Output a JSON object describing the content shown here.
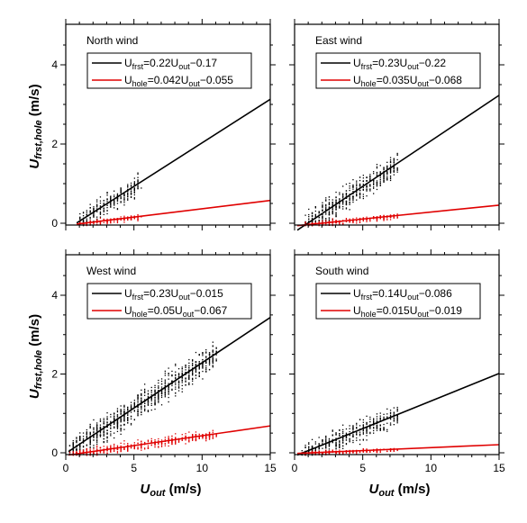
{
  "chart_data": [
    {
      "type": "scatter",
      "title": "North wind",
      "xlim": [
        0,
        15
      ],
      "ylim": [
        0,
        5.0
      ],
      "xticks": [
        0,
        5,
        10,
        15
      ],
      "yticks": [
        0,
        2,
        4
      ],
      "series": [
        {
          "name": "U_frst",
          "color": "#000000",
          "fit": {
            "slope": 0.22,
            "intercept": -0.17
          },
          "legend": {
            "var": "U",
            "sub": "frst",
            "mid": "=0.22U",
            "sub2": "out",
            "tail": "−0.17"
          },
          "scatter": {
            "x_range": [
              1.0,
              5.4
            ],
            "spread": 0.45,
            "count": 260,
            "x_max_outlier": 5.4,
            "y_max": 1.4
          }
        },
        {
          "name": "U_hole",
          "color": "#e00000",
          "fit": {
            "slope": 0.042,
            "intercept": -0.055
          },
          "legend": {
            "var": "U",
            "sub": "hole",
            "mid": "=0.042U",
            "sub2": "out",
            "tail": "−0.055"
          },
          "scatter": {
            "x_range": [
              1.0,
              5.4
            ],
            "spread": 0.12,
            "count": 160,
            "y_max": 0.4
          }
        }
      ]
    },
    {
      "type": "scatter",
      "title": "East wind",
      "xlim": [
        0,
        15
      ],
      "ylim": [
        0,
        5.0
      ],
      "xticks": [
        0,
        5,
        10,
        15
      ],
      "yticks": [
        0,
        2,
        4
      ],
      "series": [
        {
          "name": "U_frst",
          "color": "#000000",
          "fit": {
            "slope": 0.23,
            "intercept": -0.22
          },
          "legend": {
            "var": "U",
            "sub": "frst",
            "mid": "=0.23U",
            "sub2": "out",
            "tail": "−0.22"
          },
          "scatter": {
            "x_range": [
              0.8,
              7.5
            ],
            "spread": 0.5,
            "count": 520,
            "y_max": 2.4
          }
        },
        {
          "name": "U_hole",
          "color": "#e00000",
          "fit": {
            "slope": 0.035,
            "intercept": -0.068
          },
          "legend": {
            "var": "U",
            "sub": "hole",
            "mid": "=0.035U",
            "sub2": "out",
            "tail": "−0.068"
          },
          "scatter": {
            "x_range": [
              0.8,
              7.5
            ],
            "spread": 0.12,
            "count": 260,
            "y_max": 0.5
          }
        }
      ]
    },
    {
      "type": "scatter",
      "title": "West wind",
      "xlim": [
        0,
        15
      ],
      "ylim": [
        0,
        5.0
      ],
      "xticks": [
        0,
        5,
        10,
        15
      ],
      "yticks": [
        0,
        2,
        4
      ],
      "xlabel_var": "U",
      "xlabel_sub": "out",
      "xlabel_unit": "(m/s)",
      "series": [
        {
          "name": "U_frst",
          "color": "#000000",
          "fit": {
            "slope": 0.23,
            "intercept": -0.015
          },
          "legend": {
            "var": "U",
            "sub": "frst",
            "mid": "=0.23U",
            "sub2": "out",
            "tail": "−0.015"
          },
          "scatter": {
            "x_range": [
              0.3,
              11.0
            ],
            "spread": 0.55,
            "count": 950,
            "y_max": 3.0
          }
        },
        {
          "name": "U_hole",
          "color": "#e00000",
          "fit": {
            "slope": 0.05,
            "intercept": -0.067
          },
          "legend": {
            "var": "U",
            "sub": "hole",
            "mid": "=0.05U",
            "sub2": "out",
            "tail": "−0.067"
          },
          "scatter": {
            "x_range": [
              0.3,
              11.0
            ],
            "spread": 0.2,
            "count": 500,
            "y_max": 0.7
          }
        }
      ]
    },
    {
      "type": "scatter",
      "title": "South wind",
      "xlim": [
        0,
        15
      ],
      "ylim": [
        0,
        5.0
      ],
      "xticks": [
        0,
        5,
        10,
        15
      ],
      "yticks": [
        0,
        2,
        4
      ],
      "xlabel_var": "U",
      "xlabel_sub": "out",
      "xlabel_unit": "(m/s)",
      "series": [
        {
          "name": "U_frst",
          "color": "#000000",
          "fit": {
            "slope": 0.14,
            "intercept": -0.086
          },
          "legend": {
            "var": "U",
            "sub": "frst",
            "mid": "=0.14U",
            "sub2": "out",
            "tail": "−0.086"
          },
          "scatter": {
            "x_range": [
              0.5,
              7.6
            ],
            "spread": 0.45,
            "count": 420,
            "y_max": 1.7
          }
        },
        {
          "name": "U_hole",
          "color": "#e00000",
          "fit": {
            "slope": 0.015,
            "intercept": -0.019
          },
          "legend": {
            "var": "U",
            "sub": "hole",
            "mid": "=0.015U",
            "sub2": "out",
            "tail": "−0.019"
          },
          "scatter": {
            "x_range": [
              0.5,
              7.6
            ],
            "spread": 0.09,
            "count": 220,
            "y_max": 0.3
          }
        }
      ]
    }
  ],
  "ylabel": {
    "var": "U",
    "sub": "frst,hole",
    "unit": "(m/s)"
  },
  "xtick_labels": [
    "0",
    "5",
    "10",
    "15"
  ],
  "ytick_labels": [
    "0",
    "2",
    "4"
  ]
}
